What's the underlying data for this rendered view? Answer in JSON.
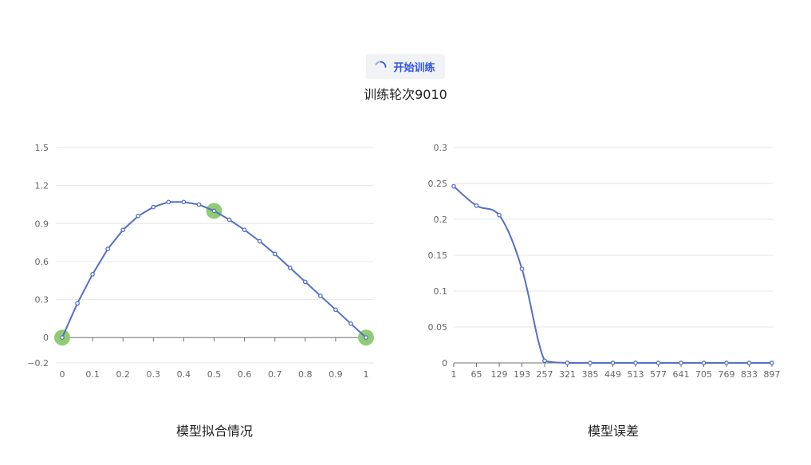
{
  "header": {
    "train_button_label": "开始训练",
    "epoch_text": "训练轮次9010"
  },
  "colors": {
    "line": "#5470c6",
    "highlight": "#91cc75",
    "button_text": "#2f54eb",
    "grid": "#e6e6e6"
  },
  "chart_data": [
    {
      "type": "line",
      "caption": "模型拟合情况",
      "ylim": [
        -0.2,
        1.5
      ],
      "yticks": [
        "1.5",
        "1.2",
        "0.9",
        "0.6",
        "0.3",
        "0",
        "−0.2"
      ],
      "ytick_values": [
        1.5,
        1.2,
        0.9,
        0.6,
        0.3,
        0,
        -0.2
      ],
      "xlim": [
        0,
        1
      ],
      "xticks": [
        "0",
        "0.1",
        "0.2",
        "0.3",
        "0.4",
        "0.5",
        "0.6",
        "0.7",
        "0.8",
        "0.9",
        "1"
      ],
      "xtick_values": [
        0,
        0.1,
        0.2,
        0.3,
        0.4,
        0.5,
        0.6,
        0.7,
        0.8,
        0.9,
        1
      ],
      "grid": true,
      "series": [
        {
          "x": [
            0,
            0.05,
            0.1,
            0.15,
            0.2,
            0.25,
            0.3,
            0.35,
            0.4,
            0.45,
            0.5,
            0.55,
            0.6,
            0.65,
            0.7,
            0.75,
            0.8,
            0.85,
            0.9,
            0.95,
            1
          ],
          "y": [
            0,
            0.27,
            0.5,
            0.7,
            0.85,
            0.96,
            1.03,
            1.07,
            1.07,
            1.05,
            1.0,
            0.93,
            0.85,
            0.76,
            0.66,
            0.55,
            0.44,
            0.33,
            0.22,
            0.11,
            0
          ]
        }
      ],
      "highlight_points": [
        {
          "x": 0,
          "y": 0
        },
        {
          "x": 0.5,
          "y": 1.0
        },
        {
          "x": 1,
          "y": 0
        }
      ]
    },
    {
      "type": "line",
      "caption": "模型误差",
      "ylim": [
        0,
        0.3
      ],
      "yticks": [
        "0.3",
        "0.25",
        "0.2",
        "0.15",
        "0.1",
        "0.05",
        "0"
      ],
      "ytick_values": [
        0.3,
        0.25,
        0.2,
        0.15,
        0.1,
        0.05,
        0
      ],
      "categories": [
        "1",
        "65",
        "129",
        "193",
        "257",
        "321",
        "385",
        "449",
        "513",
        "577",
        "641",
        "705",
        "769",
        "833",
        "897"
      ],
      "grid": true,
      "smooth": true,
      "series": [
        {
          "values": [
            0.246,
            0.219,
            0.206,
            0.131,
            0.003,
            0,
            0,
            0,
            0,
            0,
            0,
            0,
            0,
            0,
            0
          ]
        }
      ]
    }
  ]
}
